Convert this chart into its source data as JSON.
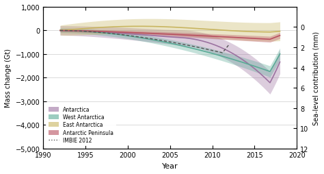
{
  "title": "",
  "xlabel": "Year",
  "ylabel_left": "Mass change (Gt)",
  "ylabel_right": "Sea-level contribution (mm)",
  "xlim": [
    1990,
    2020
  ],
  "ylim_left": [
    -5000,
    1000
  ],
  "ylim_right": [
    12,
    -2
  ],
  "yticks_left": [
    -5000,
    -4000,
    -3000,
    -2000,
    -1000,
    0,
    1000
  ],
  "yticks_right": [
    0,
    2,
    4,
    6,
    8,
    10,
    12
  ],
  "xticks": [
    1990,
    1995,
    2000,
    2005,
    2010,
    2015,
    2020
  ],
  "colors": {
    "antarctica": "#9b72a0",
    "west_antarctica": "#5aaa96",
    "east_antarctica": "#c8b560",
    "antarctic_peninsula": "#b85060",
    "imbie2012": "#555555"
  },
  "background": "#f5f5f0",
  "conversion_factor": 0.002765
}
